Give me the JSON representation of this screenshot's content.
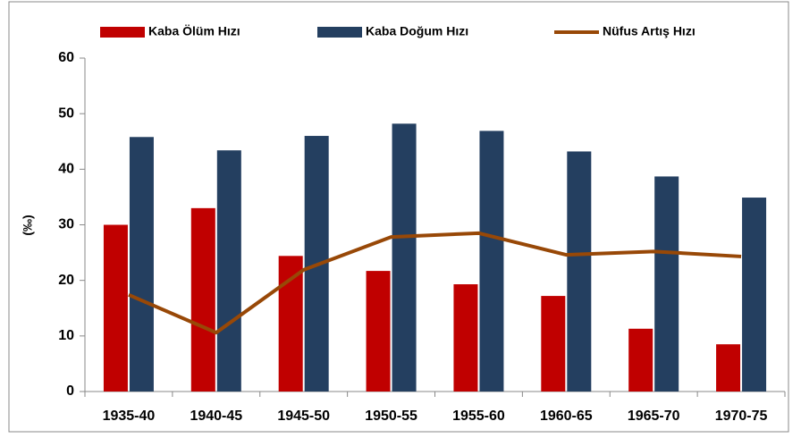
{
  "chart_data": {
    "type": "bar-line",
    "y_label": "(‰)",
    "categories": [
      "1935-40",
      "1940-45",
      "1945-50",
      "1950-55",
      "1955-60",
      "1960-65",
      "1965-70",
      "1970-75"
    ],
    "series": [
      {
        "name": "Kaba Ölüm Hızı",
        "type": "bar",
        "color": "#c00000",
        "values": [
          30,
          33,
          24.4,
          21.7,
          19.3,
          17.2,
          11.3,
          8.5
        ]
      },
      {
        "name": "Kaba Doğum Hızı",
        "type": "bar",
        "color": "#243f60",
        "values": [
          45.8,
          43.4,
          46,
          48.2,
          46.9,
          43.2,
          38.7,
          34.9
        ]
      },
      {
        "name": "Nüfus Artış Hızı",
        "type": "line",
        "color": "#984807",
        "values": [
          17.4,
          10.6,
          21.9,
          27.8,
          28.5,
          24.6,
          25.2,
          24.3
        ]
      }
    ],
    "ylim": [
      0,
      60
    ],
    "yticks": [
      0,
      10,
      20,
      30,
      40,
      50,
      60
    ],
    "grid": false,
    "legend": "top"
  }
}
